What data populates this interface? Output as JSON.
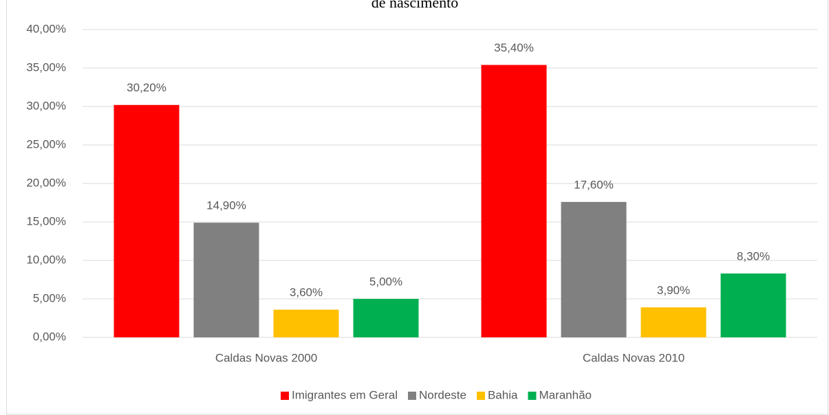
{
  "chart_data": {
    "type": "bar",
    "title": "de nascimento",
    "categories": [
      "Caldas Novas 2000",
      "Caldas Novas 2010"
    ],
    "series": [
      {
        "name": "Imigrantes em Geral",
        "color": "#ff0000",
        "values": [
          30.2,
          35.4
        ],
        "value_labels": [
          "30,20%",
          "35,40%"
        ]
      },
      {
        "name": "Nordeste",
        "color": "#808080",
        "values": [
          14.9,
          17.6
        ],
        "value_labels": [
          "14,90%",
          "17,60%"
        ]
      },
      {
        "name": "Bahia",
        "color": "#ffc000",
        "values": [
          3.6,
          3.9
        ],
        "value_labels": [
          "3,60%",
          "3,90%"
        ]
      },
      {
        "name": "Maranhão",
        "color": "#00b050",
        "values": [
          5.0,
          8.3
        ],
        "value_labels": [
          "5,00%",
          "8,30%"
        ]
      }
    ],
    "ylim": [
      0,
      40
    ],
    "yticks": [
      {
        "value": 0,
        "label": "0,00%"
      },
      {
        "value": 5,
        "label": "5,00%"
      },
      {
        "value": 10,
        "label": "10,00%"
      },
      {
        "value": 15,
        "label": "15,00%"
      },
      {
        "value": 20,
        "label": "20,00%"
      },
      {
        "value": 25,
        "label": "25,00%"
      },
      {
        "value": 30,
        "label": "30,00%"
      },
      {
        "value": 35,
        "label": "35,00%"
      },
      {
        "value": 40,
        "label": "40,00%"
      }
    ],
    "grid": true,
    "legend": "bottom"
  }
}
